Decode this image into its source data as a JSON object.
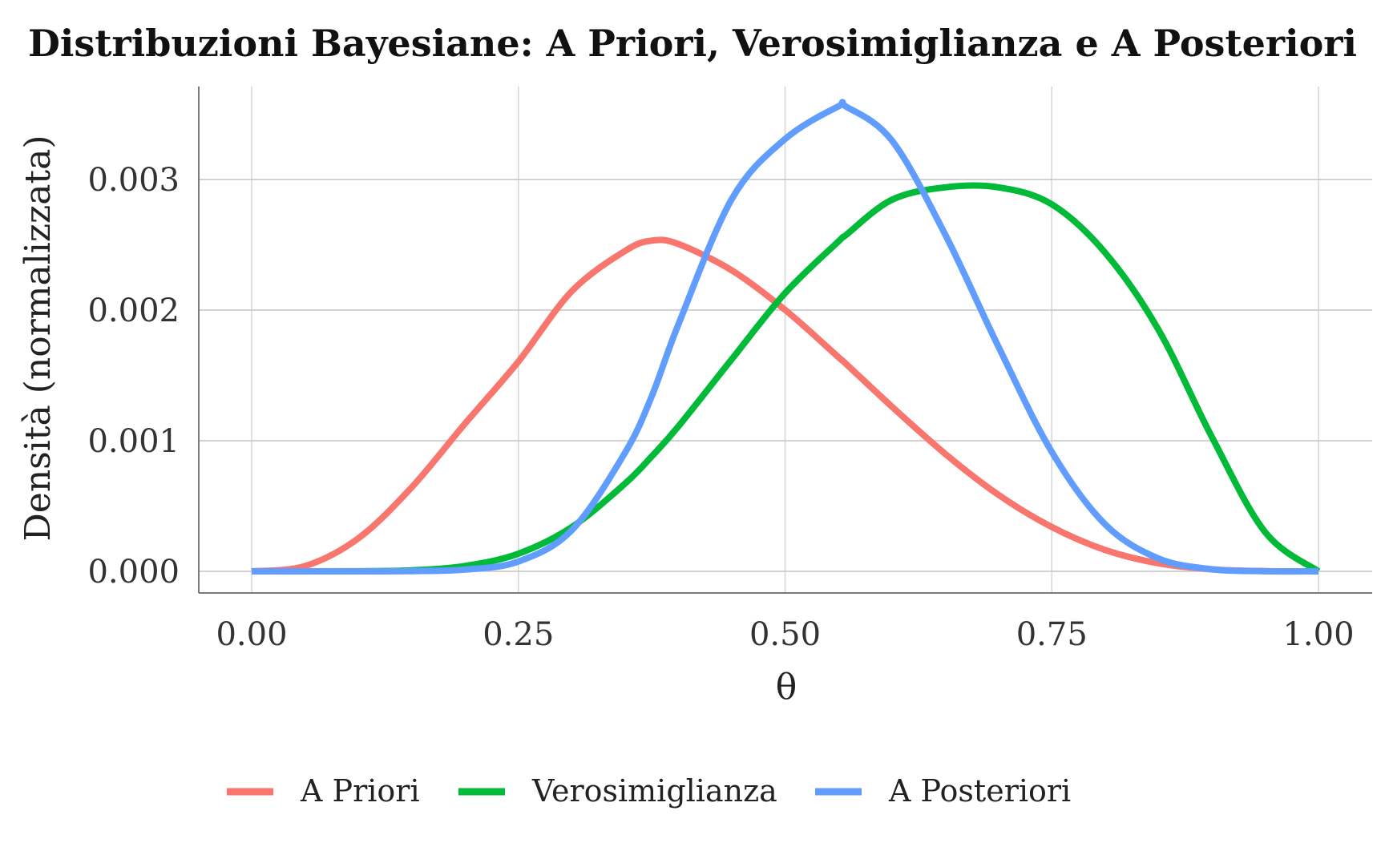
{
  "chart_data": {
    "type": "line",
    "title": "Distribuzioni Bayesiane: A Priori, Verosimiglianza e A Posteriori",
    "xlabel": "θ",
    "ylabel": "Densità (normalizzata)",
    "xlim": [
      0,
      1
    ],
    "ylim": [
      0,
      0.0036
    ],
    "x_ticks": [
      0,
      0.25,
      0.5,
      0.75,
      1
    ],
    "x_tick_labels": [
      "0.00",
      "0.25",
      "0.50",
      "0.75",
      "1.00"
    ],
    "y_ticks": [
      0,
      0.001,
      0.002,
      0.003
    ],
    "y_tick_labels": [
      "0.000",
      "0.001",
      "0.002",
      "0.003"
    ],
    "grid": true,
    "legend_position": "bottom",
    "x": [
      0,
      0.05,
      0.1,
      0.15,
      0.2,
      0.25,
      0.3,
      0.35,
      0.375,
      0.4,
      0.45,
      0.5,
      0.55,
      0.5568,
      0.6,
      0.65,
      0.7,
      0.75,
      0.8,
      0.85,
      0.9,
      0.95,
      1
    ],
    "series": [
      {
        "name": "A Priori",
        "color": "#f8766d",
        "values": [
          0,
          4.06e-05,
          0.000253,
          0.000643,
          0.001131,
          0.001606,
          0.002144,
          0.002453,
          0.002532,
          0.002506,
          0.002304,
          0.002002,
          0.00164,
          0.001591,
          0.001262,
          0.0009,
          0.000586,
          0.000339,
          0.000164,
          6.11e-05,
          1.52e-05,
          1.7e-06,
          0
        ]
      },
      {
        "name": "Verosimiglianza",
        "color": "#00ba38",
        "values": [
          0,
          0,
          6e-07,
          8.2e-06,
          4.13e-05,
          0.000135,
          0.000338,
          0.000672,
          0.00088,
          0.00111,
          0.001624,
          0.00213,
          0.002526,
          0.002573,
          0.002844,
          0.00294,
          0.00294,
          0.00281,
          0.00244,
          0.00185,
          0.00103,
          0.0003,
          0
        ]
      },
      {
        "name": "A Posteriori",
        "color": "#619cff",
        "values": [
          0,
          0,
          1e-07,
          1.6e-06,
          1.38e-05,
          7.51e-05,
          0.000314,
          0.000908,
          0.00134,
          0.00189,
          0.00285,
          0.00331,
          0.00356,
          0.00356,
          0.0033,
          0.00258,
          0.00172,
          0.000914,
          0.00036,
          9.9e-05,
          1.6e-05,
          8e-07,
          0
        ]
      }
    ]
  }
}
